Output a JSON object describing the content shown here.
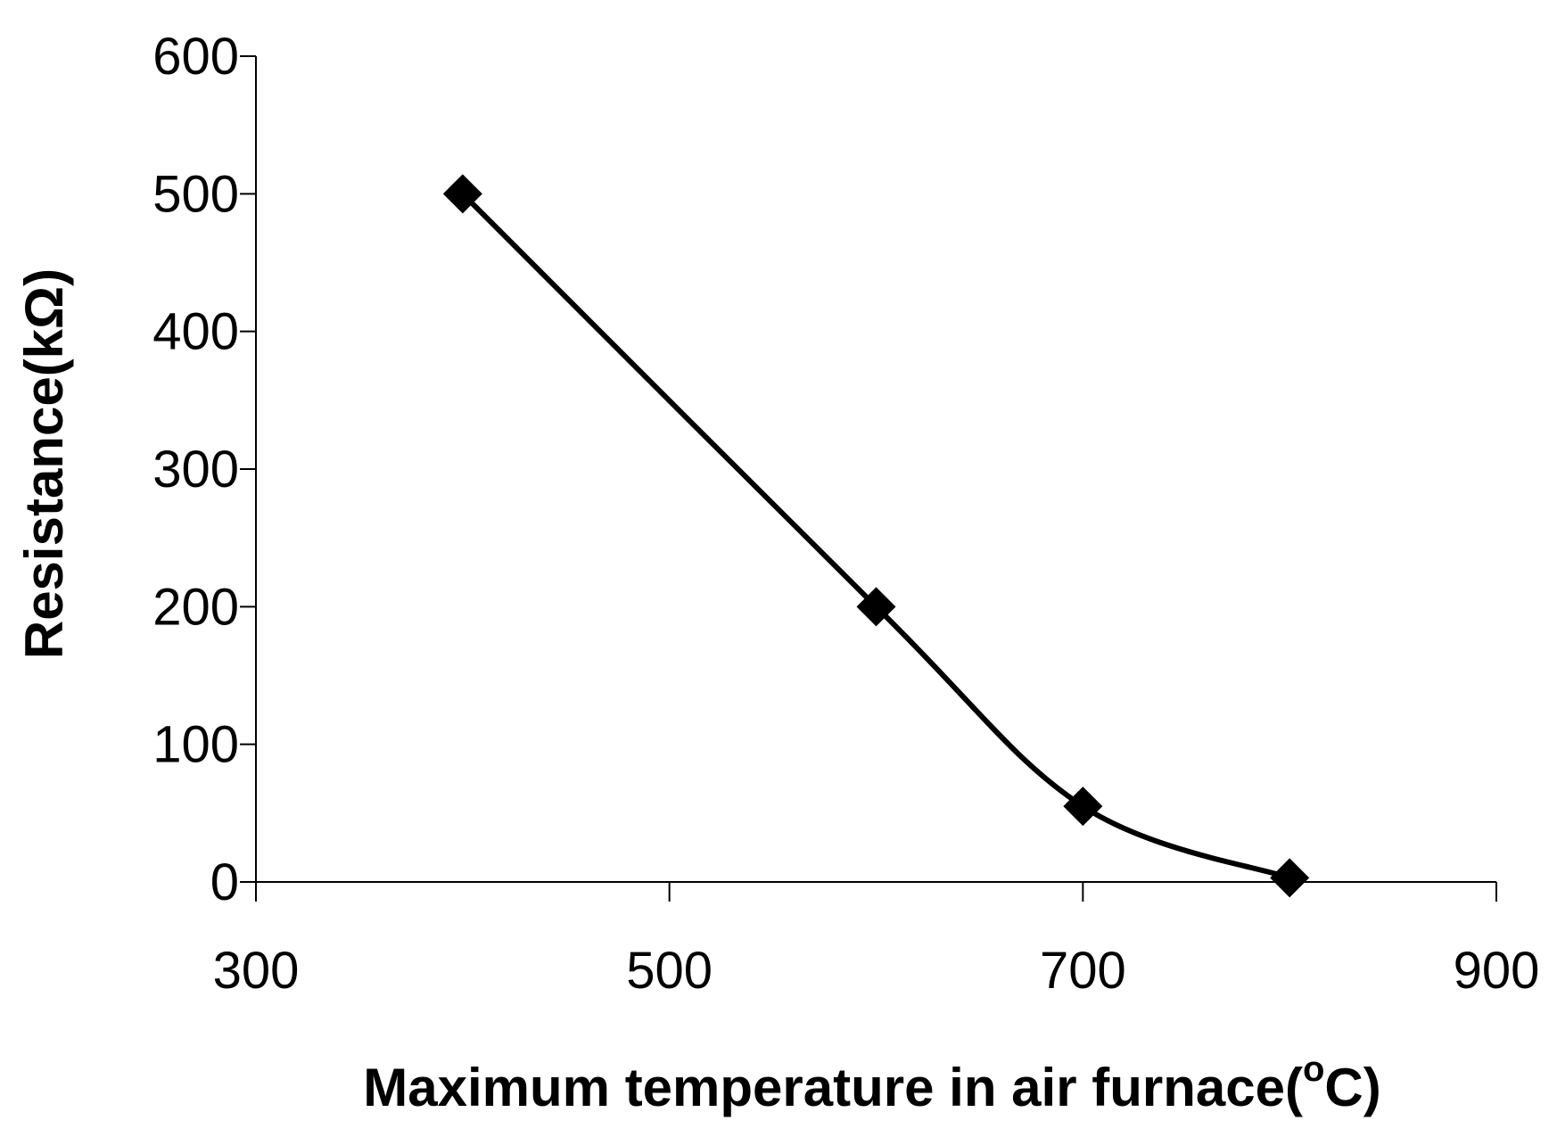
{
  "chart_data": {
    "type": "line",
    "title": "",
    "xlabel": "Maximum temperature in air furnace(",
    "xlabel_sup": "o",
    "xlabel_end": "C)",
    "ylabel": "Resistance(kΩ)",
    "xlim": [
      300,
      900
    ],
    "ylim": [
      0,
      600
    ],
    "x_ticks": [
      "300",
      "500",
      "700",
      "900"
    ],
    "y_ticks": [
      "0",
      "100",
      "200",
      "300",
      "400",
      "500",
      "600"
    ],
    "x_tick_values": [
      300,
      500,
      700,
      900
    ],
    "y_tick_values": [
      0,
      100,
      200,
      300,
      400,
      500,
      600
    ],
    "grid": false,
    "series": [
      {
        "marker": "diamond",
        "line": "smooth",
        "color": "#000000",
        "x": [
          400,
          600,
          700,
          800
        ],
        "y": [
          500,
          200,
          55,
          3
        ]
      }
    ]
  }
}
